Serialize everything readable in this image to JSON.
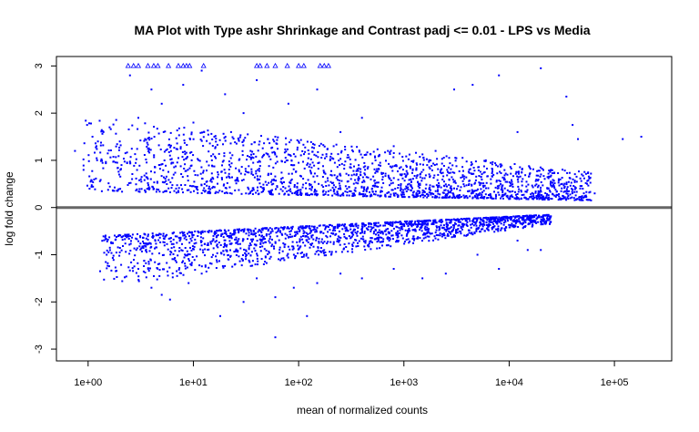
{
  "chart_data": {
    "type": "scatter",
    "title": "MA Plot with Type ashr Shrinkage and Contrast padj <= 0.01 - LPS vs Media",
    "xlabel": "mean of normalized counts",
    "ylabel": "log fold change",
    "x_scale": "log10",
    "xlim": [
      0.5,
      350000
    ],
    "ylim": [
      -3.25,
      3.2
    ],
    "x_ticks": [
      {
        "value": 1,
        "label": "1e+00"
      },
      {
        "value": 10,
        "label": "1e+01"
      },
      {
        "value": 100,
        "label": "1e+02"
      },
      {
        "value": 1000,
        "label": "1e+03"
      },
      {
        "value": 10000,
        "label": "1e+04"
      },
      {
        "value": 100000,
        "label": "1e+05"
      }
    ],
    "y_ticks": [
      -3,
      -2,
      -1,
      0,
      1,
      2,
      3
    ],
    "reference_line": 0,
    "colors": {
      "points": "#0000ff",
      "reference_line": "#666666",
      "axes": "#000000"
    },
    "series": [
      {
        "marker": "point",
        "values": [
          [
            0.75,
            1.2
          ],
          [
            1.1,
            1.5
          ],
          [
            1.2,
            1.3
          ],
          [
            1.4,
            1.6
          ],
          [
            1.6,
            1.7
          ],
          [
            2.0,
            1.4
          ],
          [
            2.5,
            2.8
          ],
          [
            3.0,
            1.9
          ],
          [
            4.0,
            2.5
          ],
          [
            5.0,
            2.2
          ],
          [
            6.0,
            1.1
          ],
          [
            8.0,
            2.6
          ],
          [
            10,
            1.8
          ],
          [
            12,
            2.9
          ],
          [
            15,
            1.0
          ],
          [
            20,
            2.4
          ],
          [
            30,
            2.0
          ],
          [
            40,
            2.7
          ],
          [
            60,
            1.5
          ],
          [
            80,
            2.2
          ],
          [
            150,
            2.5
          ],
          [
            250,
            1.6
          ],
          [
            400,
            1.9
          ],
          [
            800,
            1.3
          ],
          [
            2000,
            1.2
          ],
          [
            3000,
            2.5
          ],
          [
            4500,
            2.6
          ],
          [
            6000,
            1.0
          ],
          [
            8000,
            2.8
          ],
          [
            12000,
            1.6
          ],
          [
            20000,
            2.95
          ],
          [
            25000,
            0.8
          ],
          [
            35000,
            2.35
          ],
          [
            40000,
            1.75
          ],
          [
            45000,
            1.45
          ],
          [
            50000,
            0.4
          ],
          [
            65000,
            0.3
          ],
          [
            120000,
            1.45
          ],
          [
            180000,
            1.5
          ],
          [
            1.3,
            -1.35
          ],
          [
            1.5,
            -1.0
          ],
          [
            2.0,
            -0.95
          ],
          [
            3.0,
            -1.3
          ],
          [
            4.0,
            -1.7
          ],
          [
            5.0,
            -1.85
          ],
          [
            6.0,
            -1.95
          ],
          [
            7.0,
            -1.45
          ],
          [
            9.0,
            -1.6
          ],
          [
            12,
            -1.4
          ],
          [
            18,
            -2.3
          ],
          [
            25,
            -1.2
          ],
          [
            30,
            -2.0
          ],
          [
            40,
            -1.5
          ],
          [
            60,
            -1.9
          ],
          [
            90,
            -1.7
          ],
          [
            120,
            -2.3
          ],
          [
            150,
            -1.6
          ],
          [
            250,
            -1.4
          ],
          [
            400,
            -1.5
          ],
          [
            800,
            -1.3
          ],
          [
            1500,
            -1.5
          ],
          [
            2500,
            -1.4
          ],
          [
            5000,
            -1.0
          ],
          [
            8000,
            -1.3
          ],
          [
            12000,
            -0.7
          ],
          [
            15000,
            -0.9
          ],
          [
            20000,
            -0.9
          ],
          [
            60,
            -2.75
          ],
          [
            16000,
            -0.3
          ]
        ]
      },
      {
        "marker": "triangle",
        "note": "",
        "values": [
          [
            2.4,
            3.0
          ],
          [
            2.7,
            3.0
          ],
          [
            3.0,
            3.0
          ],
          [
            3.7,
            3.0
          ],
          [
            4.2,
            3.0
          ],
          [
            4.6,
            3.0
          ],
          [
            5.8,
            3.0
          ],
          [
            7.2,
            3.0
          ],
          [
            8.0,
            3.0
          ],
          [
            8.6,
            3.0
          ],
          [
            9.2,
            3.0
          ],
          [
            12.5,
            3.0
          ],
          [
            40,
            3.0
          ],
          [
            43,
            3.0
          ],
          [
            50,
            3.0
          ],
          [
            60,
            3.0
          ],
          [
            78,
            3.0
          ],
          [
            100,
            3.0
          ],
          [
            112,
            3.0
          ],
          [
            160,
            3.0
          ],
          [
            175,
            3.0
          ],
          [
            192,
            3.0
          ]
        ]
      }
    ],
    "density_bands": [
      {
        "x_min": 0.9,
        "x_max": 60000,
        "y_min": 0.15,
        "y_max": 2.3,
        "count": 1900
      },
      {
        "x_min": 1.3,
        "x_max": 25000,
        "y_min": -1.5,
        "y_max": -0.12,
        "count": 1800
      }
    ]
  }
}
